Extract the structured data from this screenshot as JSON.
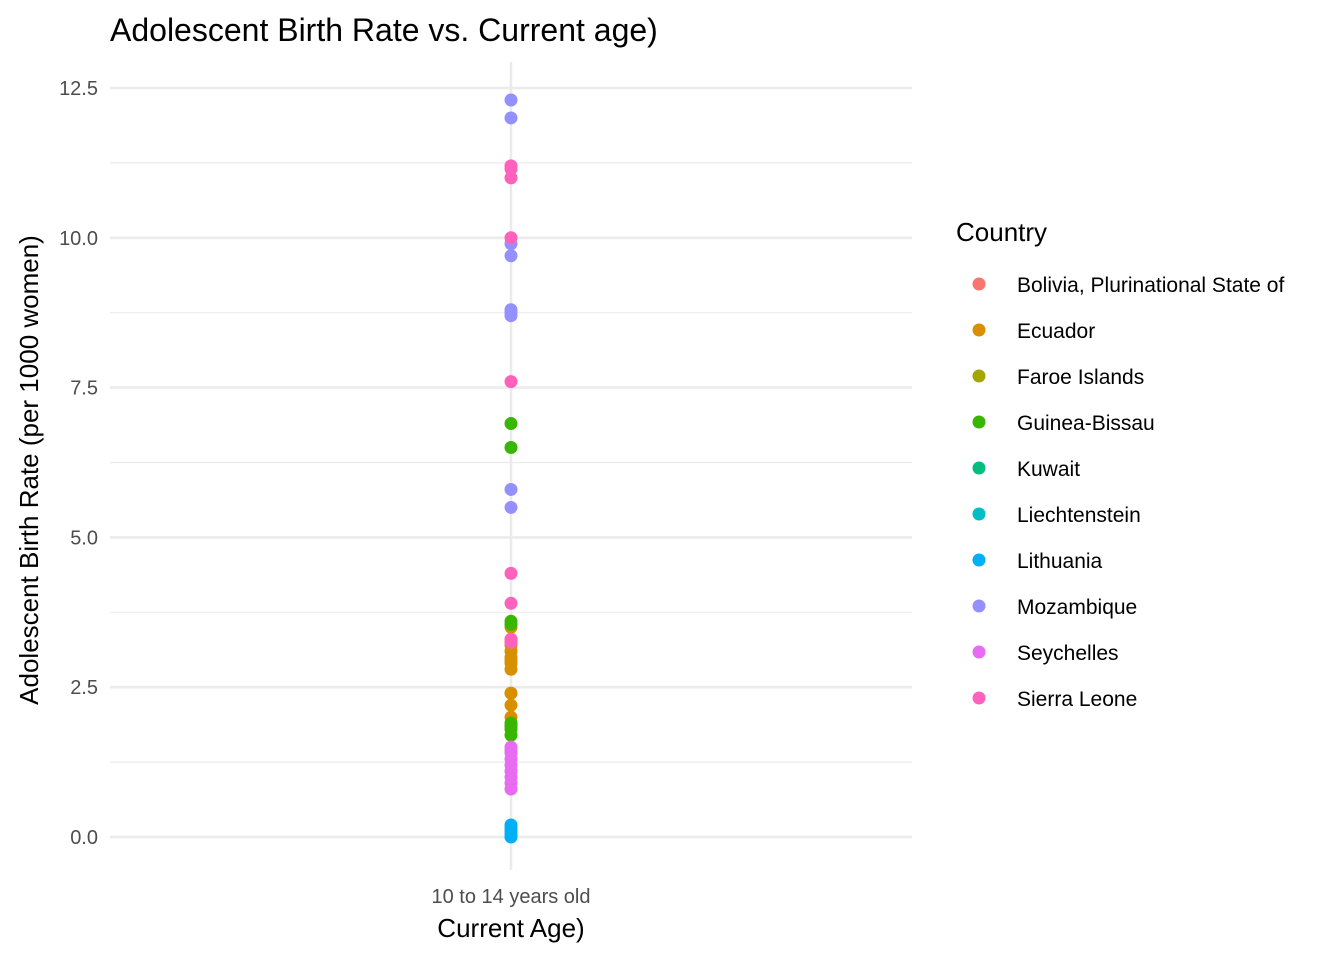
{
  "chart_data": {
    "type": "scatter",
    "title": "Adolescent Birth Rate vs. Current age)",
    "xlabel": "Current Age)",
    "ylabel": "Adolescent Birth Rate (per 1000 women)",
    "categories": [
      "10 to 14 years old"
    ],
    "ylim": [
      -0.5,
      12.8
    ],
    "yticks": [
      0.0,
      2.5,
      5.0,
      7.5,
      10.0,
      12.5
    ],
    "ytick_labels": [
      "0.0",
      "2.5",
      "5.0",
      "7.5",
      "10.0",
      "12.5"
    ],
    "grid": true,
    "legend": {
      "title": "Country",
      "position": "right"
    },
    "series": [
      {
        "name": "Bolivia, Plurinational State of",
        "color": "#F8766D",
        "x": [],
        "y": []
      },
      {
        "name": "Ecuador",
        "color": "#D89000",
        "x": [
          "10 to 14 years old",
          "10 to 14 years old",
          "10 to 14 years old",
          "10 to 14 years old",
          "10 to 14 years old",
          "10 to 14 years old",
          "10 to 14 years old",
          "10 to 14 years old",
          "10 to 14 years old",
          "10 to 14 years old",
          "10 to 14 years old",
          "10 to 14 years old"
        ],
        "y": [
          3.5,
          3.2,
          3.0,
          2.9,
          2.8,
          2.4,
          2.2,
          2.0,
          2.4,
          3.3,
          3.1,
          2.95
        ]
      },
      {
        "name": "Faroe Islands",
        "color": "#A3A500",
        "x": [],
        "y": []
      },
      {
        "name": "Guinea-Bissau",
        "color": "#39B600",
        "x": [
          "10 to 14 years old",
          "10 to 14 years old",
          "10 to 14 years old",
          "10 to 14 years old",
          "10 to 14 years old",
          "10 to 14 years old",
          "10 to 14 years old",
          "10 to 14 years old"
        ],
        "y": [
          6.9,
          6.5,
          3.6,
          3.55,
          1.9,
          1.8,
          1.7,
          1.85
        ]
      },
      {
        "name": "Kuwait",
        "color": "#00BF7D",
        "x": [],
        "y": []
      },
      {
        "name": "Liechtenstein",
        "color": "#00BFC4",
        "x": [],
        "y": []
      },
      {
        "name": "Lithuania",
        "color": "#00B0F6",
        "x": [
          "10 to 14 years old",
          "10 to 14 years old",
          "10 to 14 years old",
          "10 to 14 years old",
          "10 to 14 years old"
        ],
        "y": [
          0.2,
          0.15,
          0.1,
          0.05,
          0.0
        ]
      },
      {
        "name": "Mozambique",
        "color": "#9590FF",
        "x": [
          "10 to 14 years old",
          "10 to 14 years old",
          "10 to 14 years old",
          "10 to 14 years old",
          "10 to 14 years old",
          "10 to 14 years old",
          "10 to 14 years old",
          "10 to 14 years old",
          "10 to 14 years old"
        ],
        "y": [
          12.3,
          12.0,
          9.9,
          9.7,
          8.8,
          8.7,
          8.75,
          5.8,
          5.5
        ]
      },
      {
        "name": "Seychelles",
        "color": "#E76BF3",
        "x": [
          "10 to 14 years old",
          "10 to 14 years old",
          "10 to 14 years old",
          "10 to 14 years old",
          "10 to 14 years old",
          "10 to 14 years old",
          "10 to 14 years old",
          "10 to 14 years old",
          "10 to 14 years old"
        ],
        "y": [
          1.5,
          1.4,
          1.3,
          1.2,
          1.1,
          1.0,
          0.9,
          0.8,
          1.45
        ]
      },
      {
        "name": "Sierra Leone",
        "color": "#FF62BC",
        "x": [
          "10 to 14 years old",
          "10 to 14 years old",
          "10 to 14 years old",
          "10 to 14 years old",
          "10 to 14 years old",
          "10 to 14 years old",
          "10 to 14 years old",
          "10 to 14 years old",
          "10 to 14 years old"
        ],
        "y": [
          11.2,
          11.0,
          10.0,
          7.6,
          4.4,
          3.9,
          3.3,
          3.25,
          11.15
        ]
      }
    ]
  }
}
